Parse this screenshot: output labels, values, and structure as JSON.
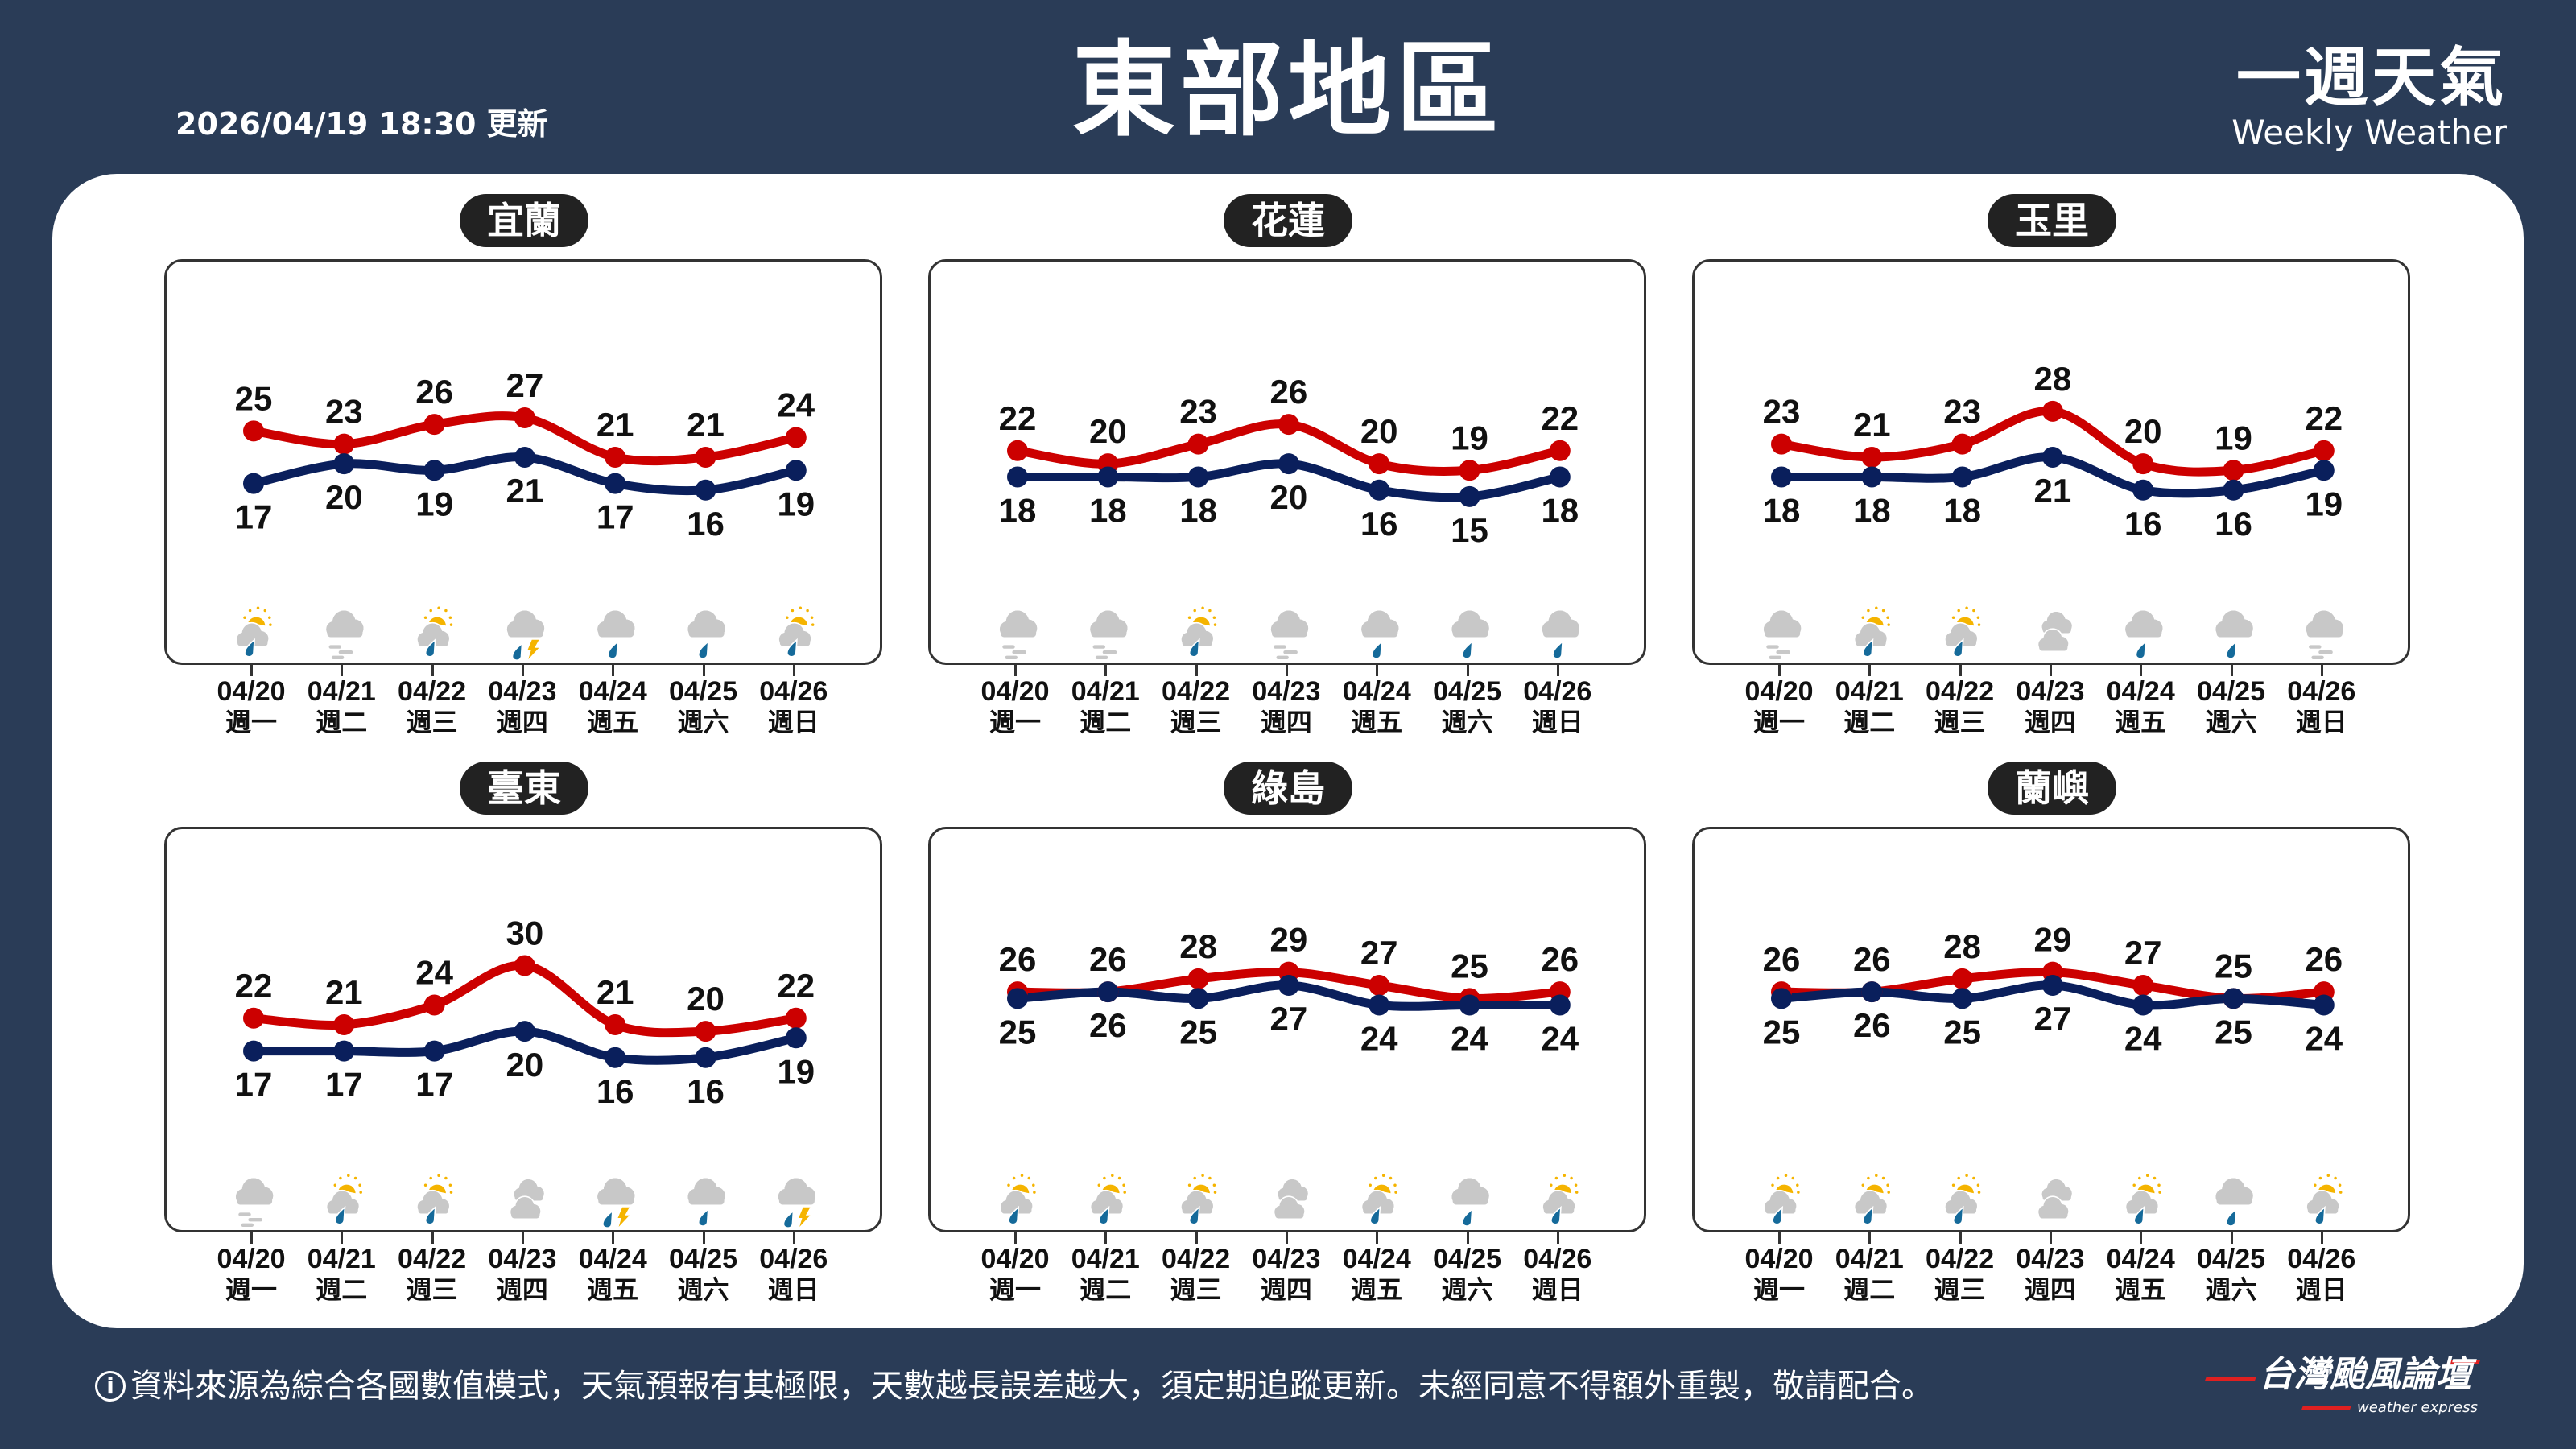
{
  "header": {
    "update_time": "2026/04/19 18:30 更新",
    "title": "東部地區",
    "brand_zh": "一週天氣",
    "brand_en": "Weekly Weather"
  },
  "colors": {
    "background": "#2a3c57",
    "high": "#cc0000",
    "low": "#0a1f5c",
    "sun": "#f5b400",
    "rain": "#156a9a",
    "cloud": "#c8c8c8"
  },
  "days": [
    {
      "date": "04/20",
      "weekday": "週一"
    },
    {
      "date": "04/21",
      "weekday": "週二"
    },
    {
      "date": "04/22",
      "weekday": "週三"
    },
    {
      "date": "04/23",
      "weekday": "週四"
    },
    {
      "date": "04/24",
      "weekday": "週五"
    },
    {
      "date": "04/25",
      "weekday": "週六"
    },
    {
      "date": "04/26",
      "weekday": "週日"
    }
  ],
  "chart_data": [
    {
      "type": "line",
      "title": "宜蘭",
      "categories": [
        "04/20",
        "04/21",
        "04/22",
        "04/23",
        "04/24",
        "04/25",
        "04/26"
      ],
      "series": [
        {
          "values": [
            25,
            23,
            26,
            27,
            21,
            21,
            24
          ]
        },
        {
          "values": [
            17,
            20,
            19,
            21,
            17,
            16,
            19
          ]
        }
      ],
      "icons": [
        "showers-sun",
        "fog",
        "showers-sun",
        "thunder-rain",
        "rain",
        "rain",
        "showers-sun"
      ]
    },
    {
      "type": "line",
      "title": "花蓮",
      "categories": [
        "04/20",
        "04/21",
        "04/22",
        "04/23",
        "04/24",
        "04/25",
        "04/26"
      ],
      "series": [
        {
          "values": [
            22,
            20,
            23,
            26,
            20,
            19,
            22
          ]
        },
        {
          "values": [
            18,
            18,
            18,
            20,
            16,
            15,
            18
          ]
        }
      ],
      "icons": [
        "fog",
        "fog",
        "showers-sun",
        "fog",
        "rain",
        "rain",
        "rain"
      ]
    },
    {
      "type": "line",
      "title": "玉里",
      "categories": [
        "04/20",
        "04/21",
        "04/22",
        "04/23",
        "04/24",
        "04/25",
        "04/26"
      ],
      "series": [
        {
          "values": [
            23,
            21,
            23,
            28,
            20,
            19,
            22
          ]
        },
        {
          "values": [
            18,
            18,
            18,
            21,
            16,
            16,
            19
          ]
        }
      ],
      "icons": [
        "fog",
        "showers-sun",
        "showers-sun",
        "cloudy",
        "rain",
        "rain",
        "fog"
      ]
    },
    {
      "type": "line",
      "title": "臺東",
      "categories": [
        "04/20",
        "04/21",
        "04/22",
        "04/23",
        "04/24",
        "04/25",
        "04/26"
      ],
      "series": [
        {
          "values": [
            22,
            21,
            24,
            30,
            21,
            20,
            22
          ]
        },
        {
          "values": [
            17,
            17,
            17,
            20,
            16,
            16,
            19
          ]
        }
      ],
      "icons": [
        "fog",
        "showers-sun",
        "showers-sun",
        "cloudy",
        "thunder-rain",
        "rain",
        "thunder-rain"
      ]
    },
    {
      "type": "line",
      "title": "綠島",
      "categories": [
        "04/20",
        "04/21",
        "04/22",
        "04/23",
        "04/24",
        "04/25",
        "04/26"
      ],
      "series": [
        {
          "values": [
            26,
            26,
            28,
            29,
            27,
            25,
            26
          ]
        },
        {
          "values": [
            25,
            26,
            25,
            27,
            24,
            24,
            24
          ]
        }
      ],
      "icons": [
        "showers-sun",
        "showers-sun",
        "showers-sun",
        "cloudy",
        "showers-sun",
        "rain",
        "showers-sun"
      ]
    },
    {
      "type": "line",
      "title": "蘭嶼",
      "categories": [
        "04/20",
        "04/21",
        "04/22",
        "04/23",
        "04/24",
        "04/25",
        "04/26"
      ],
      "series": [
        {
          "values": [
            26,
            26,
            28,
            29,
            27,
            25,
            26
          ]
        },
        {
          "values": [
            25,
            26,
            25,
            27,
            24,
            25,
            24
          ]
        }
      ],
      "icons": [
        "showers-sun",
        "showers-sun",
        "showers-sun",
        "cloudy",
        "showers-sun",
        "rain",
        "showers-sun"
      ]
    }
  ],
  "footer": {
    "disclaimer": "資料來源為綜合各國數值模式，天氣預報有其極限，天數越長誤差越大，須定期追蹤更新。未經同意不得額外重製，敬請配合。",
    "info_icon": "i",
    "logo_name": "台灣颱風論壇",
    "logo_sub": "weather express"
  }
}
